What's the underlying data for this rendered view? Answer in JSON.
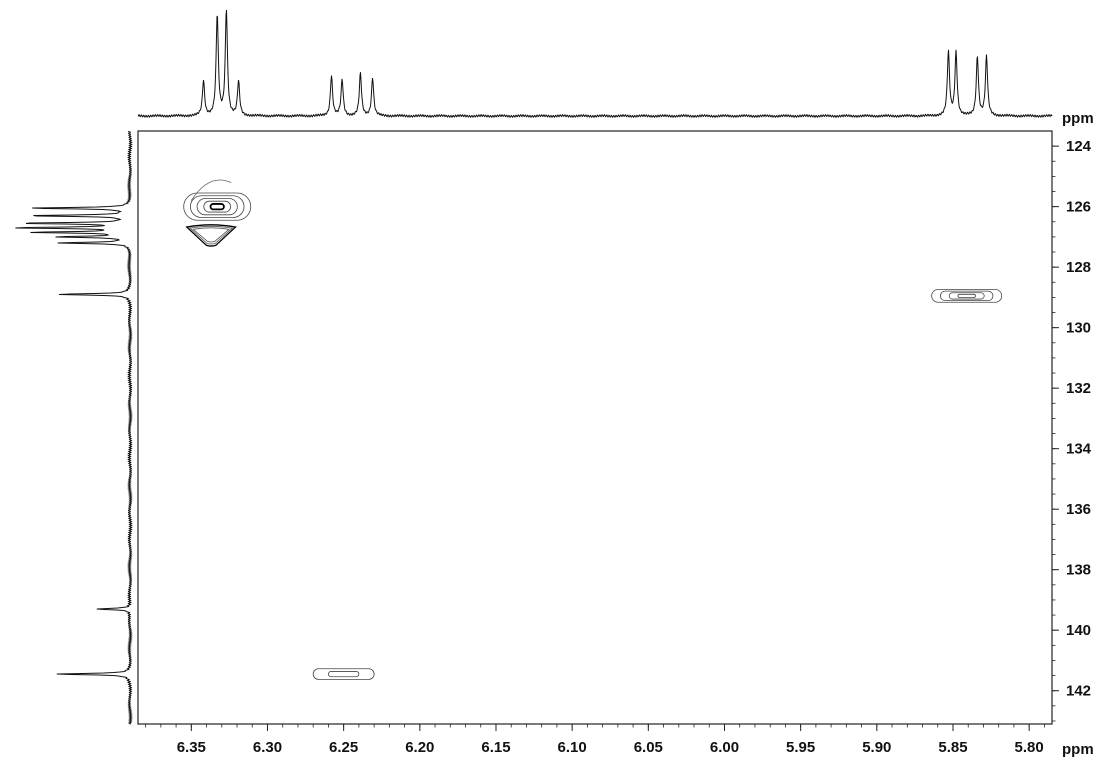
{
  "chart_data": {
    "type": "heatmap",
    "x_axis": {
      "unit": "ppm",
      "ticks": [
        6.35,
        6.3,
        6.25,
        6.2,
        6.15,
        6.1,
        6.05,
        6.0,
        5.95,
        5.9,
        5.85,
        5.8
      ],
      "tick_labels": [
        "6.35",
        "6.30",
        "6.25",
        "6.20",
        "6.15",
        "6.10",
        "6.05",
        "6.00",
        "5.95",
        "5.90",
        "5.85",
        "5.80"
      ],
      "range": [
        6.385,
        5.785
      ],
      "reversed": true
    },
    "y_axis": {
      "unit": "ppm",
      "ticks": [
        124,
        126,
        128,
        130,
        132,
        134,
        136,
        138,
        140,
        142
      ],
      "tick_labels": [
        "124",
        "126",
        "128",
        "130",
        "132",
        "134",
        "136",
        "138",
        "140",
        "142"
      ],
      "range": [
        123.5,
        143.1
      ],
      "side": "right"
    },
    "top_projection": {
      "baseline_level": 0.02,
      "peaks": [
        {
          "ppm": 6.342,
          "height": 0.33
        },
        {
          "ppm": 6.333,
          "height": 0.95
        },
        {
          "ppm": 6.327,
          "height": 1.0
        },
        {
          "ppm": 6.319,
          "height": 0.32
        },
        {
          "ppm": 6.258,
          "height": 0.38
        },
        {
          "ppm": 6.251,
          "height": 0.34
        },
        {
          "ppm": 6.239,
          "height": 0.4
        },
        {
          "ppm": 6.231,
          "height": 0.36
        },
        {
          "ppm": 5.853,
          "height": 0.6
        },
        {
          "ppm": 5.848,
          "height": 0.6
        },
        {
          "ppm": 5.834,
          "height": 0.56
        },
        {
          "ppm": 5.828,
          "height": 0.56
        }
      ]
    },
    "left_projection": {
      "peaks": [
        {
          "ppm": 126.05,
          "height": 0.78
        },
        {
          "ppm": 126.3,
          "height": 0.8
        },
        {
          "ppm": 126.55,
          "height": 0.85
        },
        {
          "ppm": 126.7,
          "height": 0.9
        },
        {
          "ppm": 126.85,
          "height": 0.75
        },
        {
          "ppm": 127.0,
          "height": 0.55
        },
        {
          "ppm": 127.2,
          "height": 0.55
        },
        {
          "ppm": 128.9,
          "height": 0.58
        },
        {
          "ppm": 139.3,
          "height": 0.27
        },
        {
          "ppm": 141.45,
          "height": 0.58
        }
      ]
    },
    "cross_peaks": [
      {
        "x_ppm": 6.333,
        "y_ppm": 126.0,
        "levels": 5,
        "width_ppm": 0.022,
        "height_ppm": 0.9,
        "emphasis": "strong"
      },
      {
        "x_ppm": 6.337,
        "y_ppm": 126.9,
        "levels": 3,
        "width_ppm": 0.016,
        "height_ppm": 0.75,
        "emphasis": "secondary"
      },
      {
        "x_ppm": 5.841,
        "y_ppm": 128.95,
        "levels": 4,
        "width_ppm": 0.023,
        "height_ppm": 0.42,
        "emphasis": "normal"
      },
      {
        "x_ppm": 6.25,
        "y_ppm": 141.45,
        "levels": 2,
        "width_ppm": 0.02,
        "height_ppm": 0.35,
        "emphasis": "normal"
      }
    ],
    "grid": false
  }
}
